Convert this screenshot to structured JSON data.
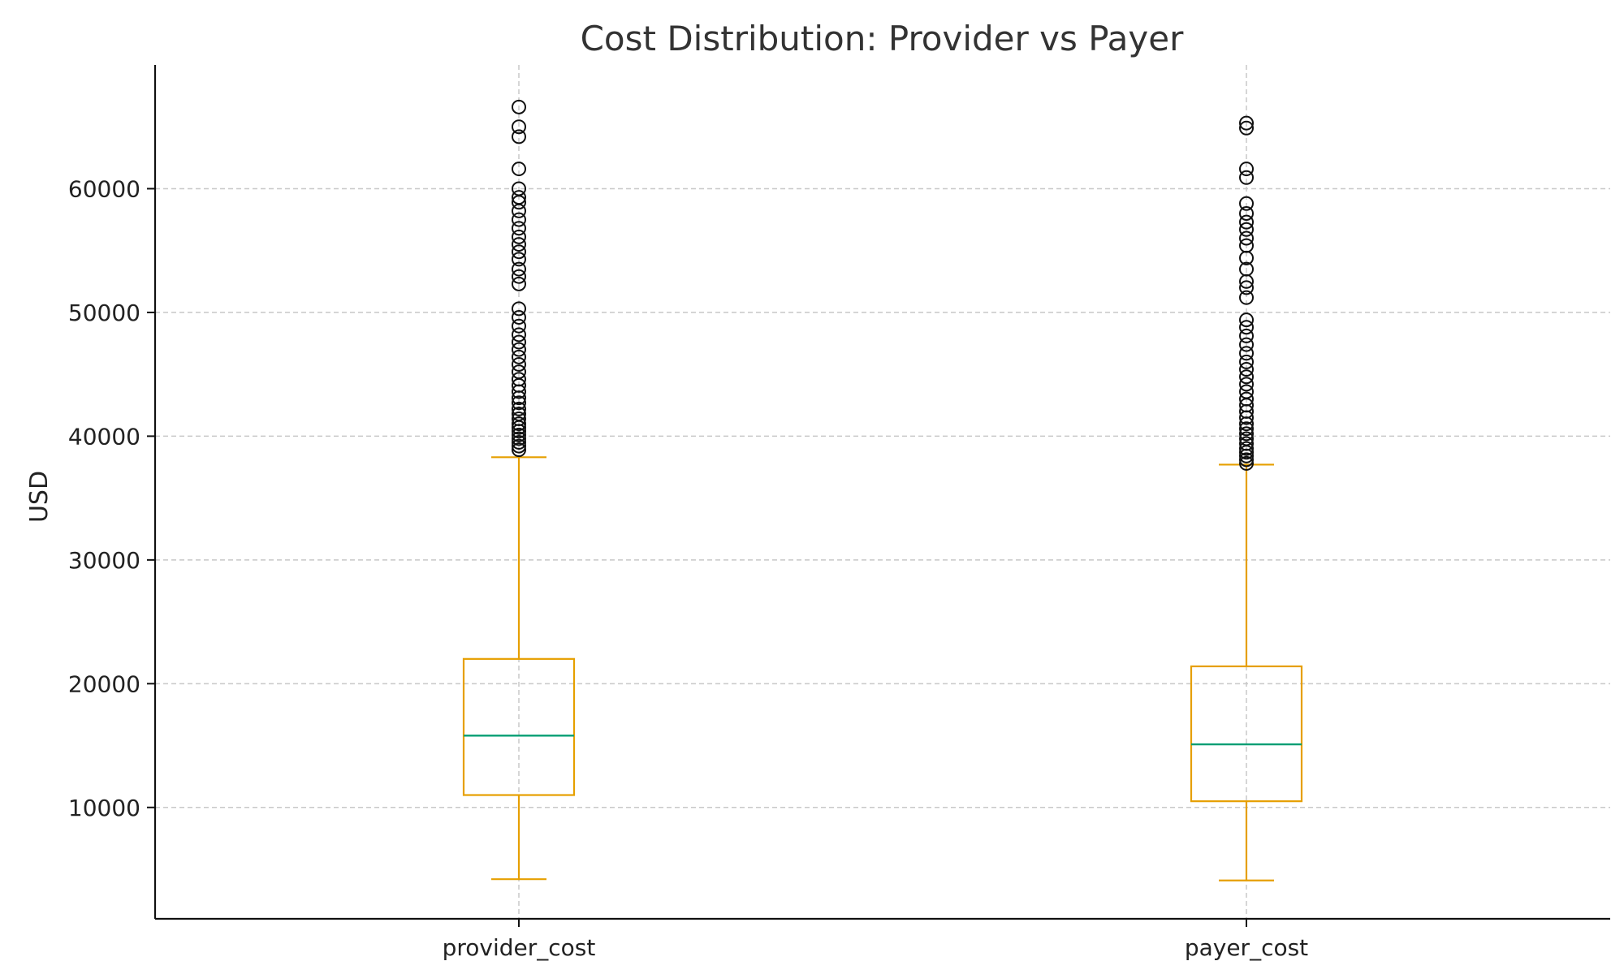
{
  "chart_data": {
    "type": "box",
    "title": "Cost Distribution: Provider vs Payer",
    "xlabel": "",
    "ylabel": "USD",
    "ylim": [
      1000,
      70000
    ],
    "yticks": [
      10000,
      20000,
      30000,
      40000,
      50000,
      60000
    ],
    "grid": true,
    "colors": {
      "box": "#E69F00",
      "median": "#009E73",
      "outlier": "#111111",
      "grid": "#c8c8c8",
      "axis": "#111111"
    },
    "categories": [
      "provider_cost",
      "payer_cost"
    ],
    "series": [
      {
        "category": "provider_cost",
        "whisker_low": 4200,
        "q1": 11000,
        "median": 15800,
        "q3": 22000,
        "whisker_high": 38300,
        "outliers": [
          38900,
          39200,
          39500,
          39800,
          40100,
          40400,
          40700,
          41000,
          41400,
          41800,
          42200,
          42700,
          43100,
          43600,
          44100,
          44600,
          45200,
          45800,
          46400,
          47000,
          47600,
          48200,
          48900,
          49600,
          50300,
          52300,
          52900,
          53500,
          54300,
          54900,
          55500,
          56100,
          56800,
          57500,
          58200,
          58900,
          59300,
          60000,
          61600,
          64200,
          65000,
          66600
        ]
      },
      {
        "category": "payer_cost",
        "whisker_low": 4100,
        "q1": 10500,
        "median": 15100,
        "q3": 21400,
        "whisker_high": 37700,
        "outliers": [
          37800,
          38100,
          38400,
          38700,
          39000,
          39400,
          39800,
          40200,
          40600,
          41000,
          41500,
          42000,
          42500,
          43000,
          43600,
          44200,
          44800,
          45400,
          46000,
          46700,
          47400,
          48100,
          48800,
          49400,
          51200,
          52000,
          52500,
          53500,
          54400,
          55400,
          56000,
          56700,
          57300,
          58000,
          58800,
          60900,
          61600,
          64900,
          65300
        ]
      }
    ]
  }
}
